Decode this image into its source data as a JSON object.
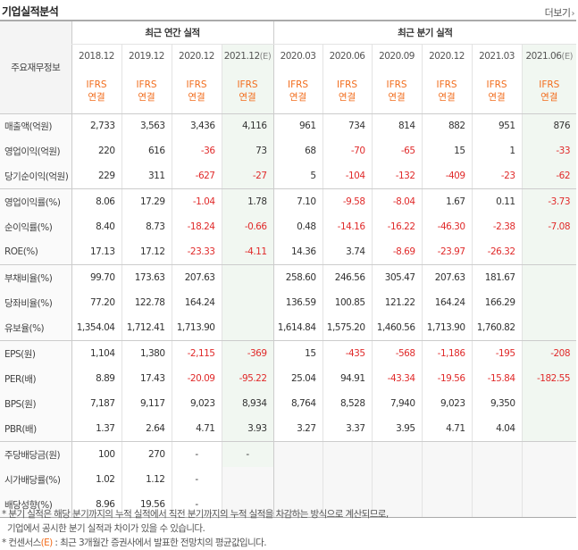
{
  "header": {
    "title": "기업실적분석",
    "more_label": "더보기"
  },
  "table": {
    "label_header": "주요재무정보",
    "annual_group": "최근 연간 실적",
    "quarter_group": "최근 분기 실적",
    "ifrs_label": "IFRS",
    "consolidated_label": "연결",
    "est_tag": "(E)",
    "periods": [
      "2018.12",
      "2019.12",
      "2020.12",
      "2021.12",
      "2020.03",
      "2020.06",
      "2020.09",
      "2020.12",
      "2021.03",
      "2021.06"
    ],
    "rows": [
      {
        "label": "매출액(억원)",
        "values": [
          "2,733",
          "3,563",
          "3,436",
          "4,116",
          "961",
          "734",
          "814",
          "882",
          "951",
          "876"
        ]
      },
      {
        "label": "영업이익(억원)",
        "values": [
          "220",
          "616",
          "-36",
          "73",
          "68",
          "-70",
          "-65",
          "15",
          "1",
          "-33"
        ]
      },
      {
        "label": "당기순이익(억원)",
        "values": [
          "229",
          "311",
          "-627",
          "-27",
          "5",
          "-104",
          "-132",
          "-409",
          "-23",
          "-62"
        ]
      },
      {
        "label": "영업이익률(%)",
        "values": [
          "8.06",
          "17.29",
          "-1.04",
          "1.78",
          "7.10",
          "-9.58",
          "-8.04",
          "1.67",
          "0.11",
          "-3.73"
        ]
      },
      {
        "label": "순이익률(%)",
        "values": [
          "8.40",
          "8.73",
          "-18.24",
          "-0.66",
          "0.48",
          "-14.16",
          "-16.22",
          "-46.30",
          "-2.38",
          "-7.08"
        ]
      },
      {
        "label": "ROE(%)",
        "values": [
          "17.13",
          "17.12",
          "-23.33",
          "-4.11",
          "14.36",
          "3.74",
          "-8.69",
          "-23.97",
          "-26.32",
          ""
        ]
      },
      {
        "label": "부채비율(%)",
        "values": [
          "99.70",
          "173.63",
          "207.63",
          "",
          "258.60",
          "246.56",
          "305.47",
          "207.63",
          "181.67",
          ""
        ]
      },
      {
        "label": "당좌비율(%)",
        "values": [
          "77.20",
          "122.78",
          "164.24",
          "",
          "136.59",
          "100.85",
          "121.22",
          "164.24",
          "166.29",
          ""
        ]
      },
      {
        "label": "유보율(%)",
        "values": [
          "1,354.04",
          "1,712.41",
          "1,713.90",
          "",
          "1,614.84",
          "1,575.20",
          "1,460.56",
          "1,713.90",
          "1,760.82",
          ""
        ]
      },
      {
        "label": "EPS(원)",
        "values": [
          "1,104",
          "1,380",
          "-2,115",
          "-369",
          "15",
          "-435",
          "-568",
          "-1,186",
          "-195",
          "-208"
        ]
      },
      {
        "label": "PER(배)",
        "values": [
          "8.89",
          "17.43",
          "-20.09",
          "-95.22",
          "25.04",
          "94.91",
          "-43.34",
          "-19.56",
          "-15.84",
          "-182.55"
        ]
      },
      {
        "label": "BPS(원)",
        "values": [
          "7,187",
          "9,117",
          "9,023",
          "8,934",
          "8,764",
          "8,528",
          "7,940",
          "9,023",
          "9,350",
          ""
        ]
      },
      {
        "label": "PBR(배)",
        "values": [
          "1.37",
          "2.64",
          "4.71",
          "3.93",
          "3.27",
          "3.37",
          "3.95",
          "4.71",
          "4.04",
          ""
        ]
      },
      {
        "label": "주당배당금(원)",
        "values": [
          "100",
          "270",
          "-",
          "-",
          "",
          "",
          "",
          "",
          "",
          ""
        ]
      },
      {
        "label": "시가배당률(%)",
        "values": [
          "1.02",
          "1.12",
          "-",
          "",
          "",
          "",
          "",
          "",
          "",
          ""
        ]
      },
      {
        "label": "배당성향(%)",
        "values": [
          "8.96",
          "19.56",
          "-",
          "",
          "",
          "",
          "",
          "",
          "",
          ""
        ]
      }
    ]
  },
  "notes": {
    "line1": "* 분기 실적은 해당 분기까지의 누적 실적에서 직전 분기까지의 누적 실적을 차감하는 방식으로 계산되므로,",
    "line2": "기업에서 공시한 분기 실적과 차이가 있을 수 있습니다.",
    "line3_prefix": "* 컨센서스",
    "line3_tag": "(E)",
    "line3_suffix": " : 최근 3개월간 증권사에서 발표한 전망치의 평균값입니다."
  },
  "colors": {
    "negative": "#e02b2b",
    "ifrs": "#f26d1d",
    "estimate_bg": "#f1f7f1"
  }
}
